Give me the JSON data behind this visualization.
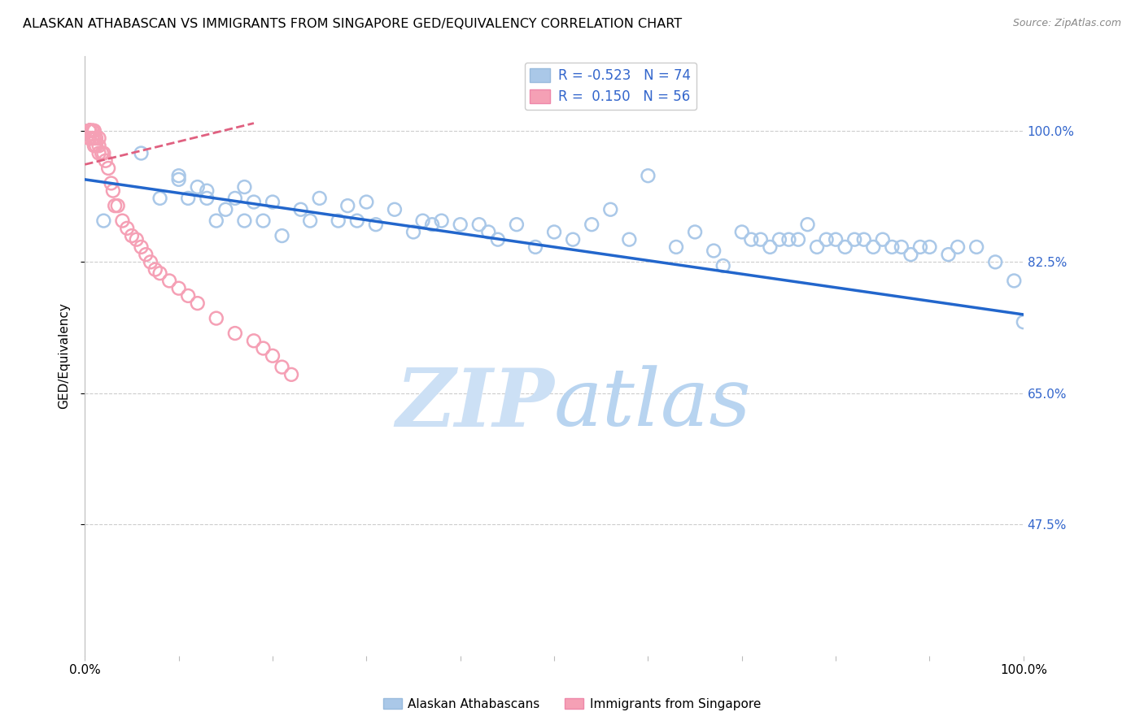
{
  "title": "ALASKAN ATHABASCAN VS IMMIGRANTS FROM SINGAPORE GED/EQUIVALENCY CORRELATION CHART",
  "source": "Source: ZipAtlas.com",
  "ylabel": "GED/Equivalency",
  "ytick_labels": [
    "100.0%",
    "82.5%",
    "65.0%",
    "47.5%"
  ],
  "ytick_values": [
    1.0,
    0.825,
    0.65,
    0.475
  ],
  "xlim": [
    0.0,
    1.0
  ],
  "ylim": [
    0.3,
    1.1
  ],
  "legend_blue_r": "-0.523",
  "legend_blue_n": "74",
  "legend_pink_r": "0.150",
  "legend_pink_n": "56",
  "blue_scatter_x": [
    0.02,
    0.06,
    0.08,
    0.1,
    0.1,
    0.11,
    0.12,
    0.13,
    0.13,
    0.14,
    0.15,
    0.16,
    0.17,
    0.17,
    0.18,
    0.19,
    0.2,
    0.21,
    0.23,
    0.24,
    0.25,
    0.27,
    0.28,
    0.29,
    0.3,
    0.31,
    0.33,
    0.35,
    0.36,
    0.37,
    0.38,
    0.4,
    0.42,
    0.43,
    0.44,
    0.46,
    0.48,
    0.5,
    0.52,
    0.54,
    0.56,
    0.58,
    0.6,
    0.63,
    0.65,
    0.67,
    0.68,
    0.7,
    0.71,
    0.72,
    0.73,
    0.74,
    0.75,
    0.76,
    0.77,
    0.78,
    0.79,
    0.8,
    0.81,
    0.82,
    0.83,
    0.84,
    0.85,
    0.86,
    0.87,
    0.88,
    0.89,
    0.9,
    0.92,
    0.93,
    0.95,
    0.97,
    0.99,
    1.0
  ],
  "blue_scatter_y": [
    0.88,
    0.97,
    0.91,
    0.935,
    0.94,
    0.91,
    0.925,
    0.92,
    0.91,
    0.88,
    0.895,
    0.91,
    0.925,
    0.88,
    0.905,
    0.88,
    0.905,
    0.86,
    0.895,
    0.88,
    0.91,
    0.88,
    0.9,
    0.88,
    0.905,
    0.875,
    0.895,
    0.865,
    0.88,
    0.875,
    0.88,
    0.875,
    0.875,
    0.865,
    0.855,
    0.875,
    0.845,
    0.865,
    0.855,
    0.875,
    0.895,
    0.855,
    0.94,
    0.845,
    0.865,
    0.84,
    0.82,
    0.865,
    0.855,
    0.855,
    0.845,
    0.855,
    0.855,
    0.855,
    0.875,
    0.845,
    0.855,
    0.855,
    0.845,
    0.855,
    0.855,
    0.845,
    0.855,
    0.845,
    0.845,
    0.835,
    0.845,
    0.845,
    0.835,
    0.845,
    0.845,
    0.825,
    0.8,
    0.745
  ],
  "pink_scatter_x": [
    0.005,
    0.005,
    0.005,
    0.005,
    0.005,
    0.005,
    0.005,
    0.005,
    0.005,
    0.005,
    0.005,
    0.005,
    0.005,
    0.005,
    0.005,
    0.008,
    0.008,
    0.008,
    0.008,
    0.008,
    0.01,
    0.01,
    0.01,
    0.012,
    0.012,
    0.015,
    0.015,
    0.015,
    0.018,
    0.02,
    0.022,
    0.025,
    0.028,
    0.03,
    0.032,
    0.035,
    0.04,
    0.045,
    0.05,
    0.055,
    0.06,
    0.065,
    0.07,
    0.075,
    0.08,
    0.09,
    0.1,
    0.11,
    0.12,
    0.14,
    0.16,
    0.18,
    0.19,
    0.2,
    0.21,
    0.22
  ],
  "pink_scatter_y": [
    1.0,
    1.0,
    1.0,
    1.0,
    1.0,
    1.0,
    1.0,
    1.0,
    1.0,
    1.0,
    1.0,
    1.0,
    0.99,
    0.99,
    0.99,
    1.0,
    1.0,
    1.0,
    0.99,
    0.99,
    1.0,
    0.99,
    0.98,
    0.99,
    0.98,
    0.99,
    0.98,
    0.97,
    0.97,
    0.97,
    0.96,
    0.95,
    0.93,
    0.92,
    0.9,
    0.9,
    0.88,
    0.87,
    0.86,
    0.855,
    0.845,
    0.835,
    0.825,
    0.815,
    0.81,
    0.8,
    0.79,
    0.78,
    0.77,
    0.75,
    0.73,
    0.72,
    0.71,
    0.7,
    0.685,
    0.675
  ],
  "blue_line_x0": 0.0,
  "blue_line_x1": 1.0,
  "blue_line_y0": 0.935,
  "blue_line_y1": 0.755,
  "pink_line_x0": 0.0,
  "pink_line_x1": 0.18,
  "pink_line_y0": 0.955,
  "pink_line_y1": 1.01,
  "blue_color": "#aac8e8",
  "blue_line_color": "#2266cc",
  "pink_color": "#f5a0b5",
  "pink_line_color": "#e06080",
  "watermark_zip_color": "#cce0f5",
  "watermark_atlas_color": "#b8d4f0",
  "grid_color": "#cccccc",
  "background_color": "#ffffff",
  "tick_label_color": "#3366cc"
}
